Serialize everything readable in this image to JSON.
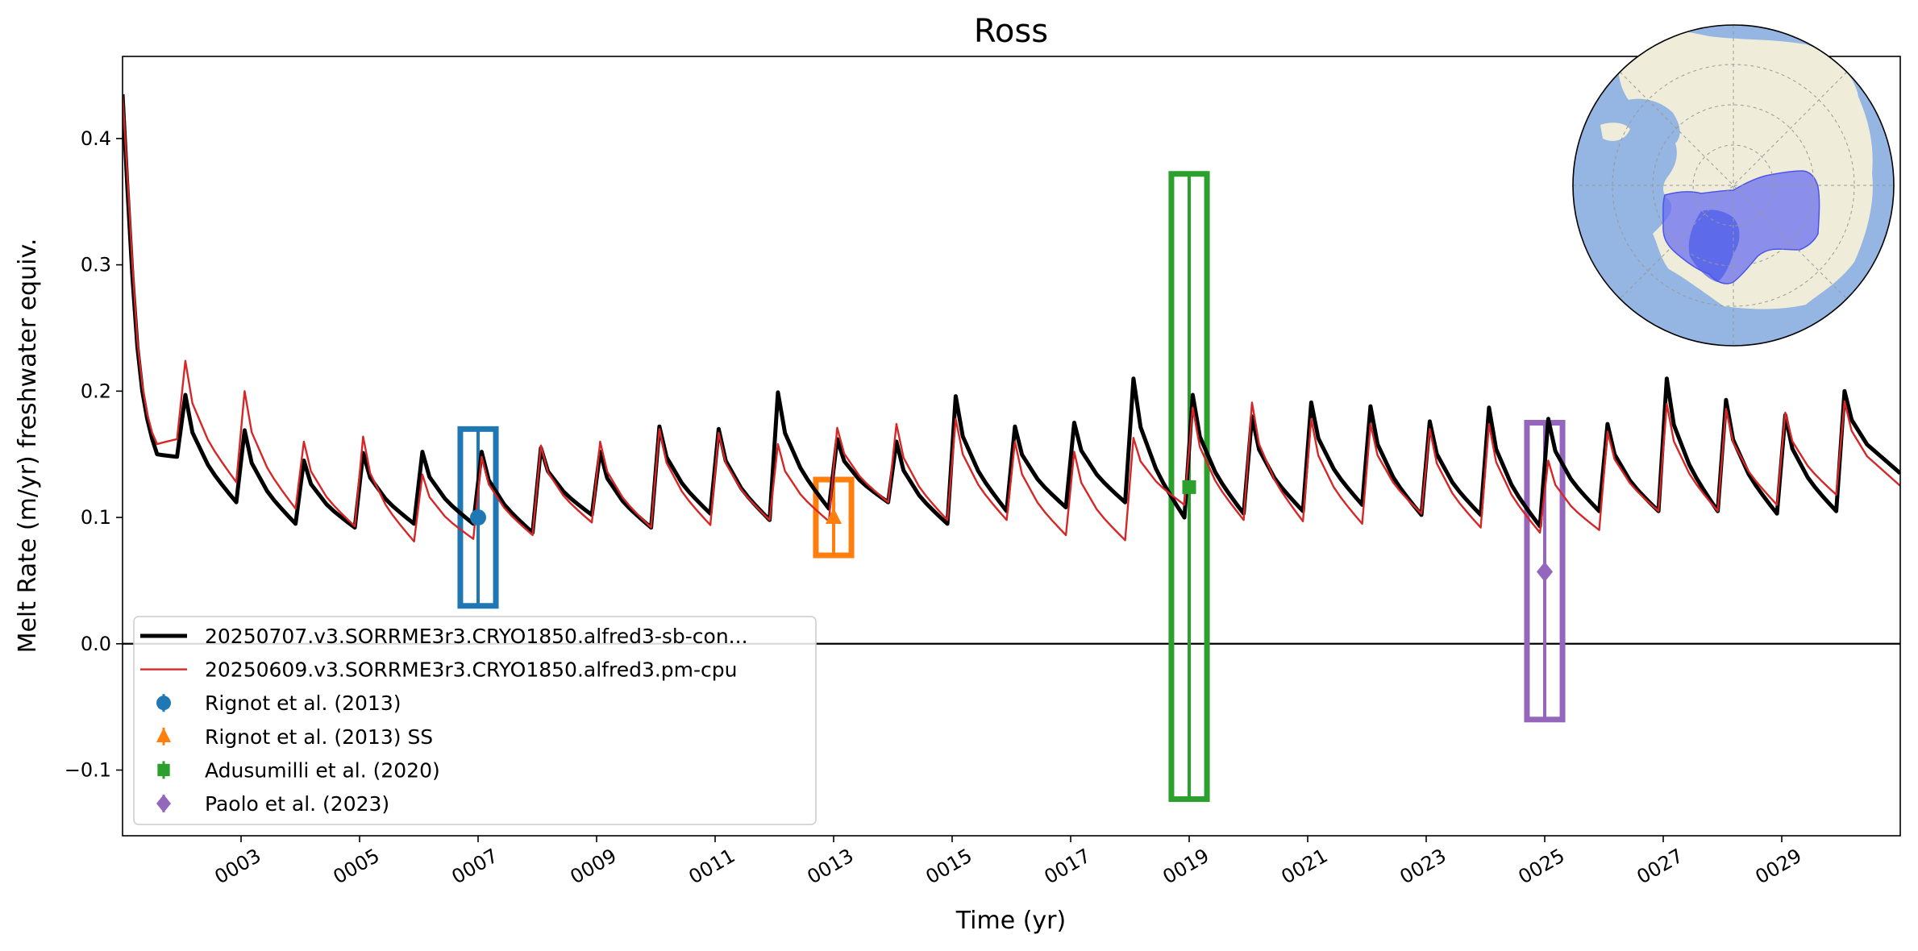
{
  "chart_data": {
    "type": "line",
    "title": "Ross",
    "xlabel": "Time (yr)",
    "ylabel": "Melt Rate (m/yr) freshwater equiv.",
    "xlim": [
      1.0,
      31.0
    ],
    "ylim": [
      -0.152,
      0.465
    ],
    "x_ticks": [
      3,
      5,
      7,
      9,
      11,
      13,
      15,
      17,
      19,
      21,
      23,
      25,
      27,
      29
    ],
    "x_tick_labels": [
      "0003",
      "0005",
      "0007",
      "0009",
      "0011",
      "0013",
      "0015",
      "0017",
      "0019",
      "0021",
      "0023",
      "0025",
      "0027",
      "0029"
    ],
    "y_ticks": [
      -0.1,
      0.0,
      0.1,
      0.2,
      0.3,
      0.4
    ],
    "y_tick_labels": [
      "−0.1",
      "0.0",
      "0.1",
      "0.2",
      "0.3",
      "0.4"
    ],
    "zero_line": true,
    "grid": false,
    "legend_position": "lower-left",
    "series": [
      {
        "name": "20250707.v3.SORRME3r3.CRYO1850.alfred3-sb-con...",
        "color": "#000000",
        "style": "thick-line",
        "start_year": 1.0,
        "initial_values": [
          0.435,
          0.36,
          0.29,
          0.235,
          0.2,
          0.178,
          0.162,
          0.15
        ],
        "yearly_cycles": [
          {
            "year": 2,
            "min": 0.148,
            "peak": 0.197
          },
          {
            "year": 3,
            "min": 0.112,
            "peak": 0.169
          },
          {
            "year": 4,
            "min": 0.095,
            "peak": 0.145
          },
          {
            "year": 5,
            "min": 0.092,
            "peak": 0.151
          },
          {
            "year": 6,
            "min": 0.095,
            "peak": 0.152
          },
          {
            "year": 7,
            "min": 0.095,
            "peak": 0.152
          },
          {
            "year": 8,
            "min": 0.088,
            "peak": 0.155
          },
          {
            "year": 9,
            "min": 0.102,
            "peak": 0.152
          },
          {
            "year": 10,
            "min": 0.092,
            "peak": 0.172
          },
          {
            "year": 11,
            "min": 0.103,
            "peak": 0.17
          },
          {
            "year": 12,
            "min": 0.098,
            "peak": 0.199
          },
          {
            "year": 13,
            "min": 0.107,
            "peak": 0.162
          },
          {
            "year": 14,
            "min": 0.112,
            "peak": 0.16
          },
          {
            "year": 15,
            "min": 0.095,
            "peak": 0.196
          },
          {
            "year": 16,
            "min": 0.105,
            "peak": 0.172
          },
          {
            "year": 17,
            "min": 0.108,
            "peak": 0.175
          },
          {
            "year": 18,
            "min": 0.112,
            "peak": 0.21
          },
          {
            "year": 19,
            "min": 0.1,
            "peak": 0.197
          },
          {
            "year": 20,
            "min": 0.103,
            "peak": 0.18
          },
          {
            "year": 21,
            "min": 0.105,
            "peak": 0.191
          },
          {
            "year": 22,
            "min": 0.11,
            "peak": 0.188
          },
          {
            "year": 23,
            "min": 0.102,
            "peak": 0.176
          },
          {
            "year": 24,
            "min": 0.102,
            "peak": 0.187
          },
          {
            "year": 25,
            "min": 0.093,
            "peak": 0.178
          },
          {
            "year": 26,
            "min": 0.105,
            "peak": 0.174
          },
          {
            "year": 27,
            "min": 0.105,
            "peak": 0.21
          },
          {
            "year": 28,
            "min": 0.105,
            "peak": 0.193
          },
          {
            "year": 29,
            "min": 0.103,
            "peak": 0.181
          },
          {
            "year": 30,
            "min": 0.105,
            "peak": 0.2
          }
        ],
        "end_value": 0.135
      },
      {
        "name": "20250609.v3.SORRME3r3.CRYO1850.alfred3.pm-cpu",
        "color": "#d62728",
        "style": "thin-line",
        "start_year": 1.0,
        "initial_values": [
          0.435,
          0.37,
          0.3,
          0.24,
          0.205,
          0.182,
          0.167,
          0.158
        ],
        "yearly_cycles": [
          {
            "year": 2,
            "min": 0.162,
            "peak": 0.224
          },
          {
            "year": 3,
            "min": 0.128,
            "peak": 0.2
          },
          {
            "year": 4,
            "min": 0.107,
            "peak": 0.16
          },
          {
            "year": 5,
            "min": 0.093,
            "peak": 0.164
          },
          {
            "year": 6,
            "min": 0.081,
            "peak": 0.134
          },
          {
            "year": 7,
            "min": 0.083,
            "peak": 0.148
          },
          {
            "year": 8,
            "min": 0.086,
            "peak": 0.157
          },
          {
            "year": 9,
            "min": 0.096,
            "peak": 0.16
          },
          {
            "year": 10,
            "min": 0.092,
            "peak": 0.17
          },
          {
            "year": 11,
            "min": 0.094,
            "peak": 0.167
          },
          {
            "year": 12,
            "min": 0.098,
            "peak": 0.158
          },
          {
            "year": 13,
            "min": 0.097,
            "peak": 0.171
          },
          {
            "year": 14,
            "min": 0.112,
            "peak": 0.174
          },
          {
            "year": 15,
            "min": 0.098,
            "peak": 0.178
          },
          {
            "year": 16,
            "min": 0.098,
            "peak": 0.16
          },
          {
            "year": 17,
            "min": 0.086,
            "peak": 0.152
          },
          {
            "year": 18,
            "min": 0.082,
            "peak": 0.163
          },
          {
            "year": 19,
            "min": 0.11,
            "peak": 0.187
          },
          {
            "year": 20,
            "min": 0.098,
            "peak": 0.191
          },
          {
            "year": 21,
            "min": 0.097,
            "peak": 0.178
          },
          {
            "year": 22,
            "min": 0.095,
            "peak": 0.174
          },
          {
            "year": 23,
            "min": 0.103,
            "peak": 0.17
          },
          {
            "year": 24,
            "min": 0.092,
            "peak": 0.174
          },
          {
            "year": 25,
            "min": 0.088,
            "peak": 0.145
          },
          {
            "year": 26,
            "min": 0.09,
            "peak": 0.168
          },
          {
            "year": 27,
            "min": 0.105,
            "peak": 0.19
          },
          {
            "year": 28,
            "min": 0.105,
            "peak": 0.186
          },
          {
            "year": 29,
            "min": 0.11,
            "peak": 0.183
          },
          {
            "year": 30,
            "min": 0.118,
            "peak": 0.192
          }
        ],
        "end_value": 0.125
      }
    ],
    "observations": [
      {
        "name": "Rignot et al. (2013)",
        "color": "#1f77b4",
        "marker": "circle",
        "x": 7.0,
        "y": 0.1,
        "ymin": 0.03,
        "ymax": 0.17,
        "box_half_width": 0.3
      },
      {
        "name": "Rignot et al. (2013) SS",
        "color": "#ff7f0e",
        "marker": "triangle",
        "x": 13.0,
        "y": 0.1,
        "ymin": 0.07,
        "ymax": 0.13,
        "box_half_width": 0.3
      },
      {
        "name": "Adusumilli et al. (2020)",
        "color": "#2ca02c",
        "marker": "square",
        "x": 19.0,
        "y": 0.124,
        "ymin": -0.123,
        "ymax": 0.372,
        "box_half_width": 0.3
      },
      {
        "name": "Paolo et al. (2023)",
        "color": "#9467bd",
        "marker": "diamond",
        "x": 25.0,
        "y": 0.057,
        "ymin": -0.06,
        "ymax": 0.175,
        "box_half_width": 0.3
      }
    ],
    "inset_map": {
      "description_color_ocean": "#95b5e2",
      "description_color_land": "#efedd9",
      "highlight_color": "#6a6ff0",
      "region": "Ross"
    }
  }
}
